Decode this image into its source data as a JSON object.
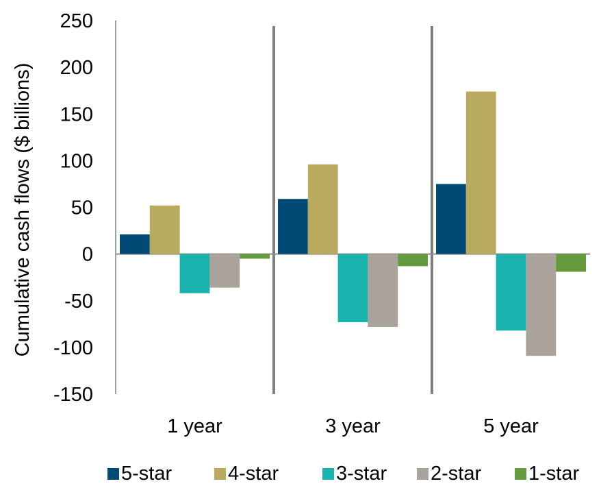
{
  "chart_data": {
    "type": "bar",
    "categories": [
      "1 year",
      "3 year",
      "5 year"
    ],
    "series": [
      {
        "name": "5-star",
        "color": "#004a75",
        "values": [
          21,
          59,
          75
        ]
      },
      {
        "name": "4-star",
        "color": "#b8aa5e",
        "values": [
          52,
          96,
          174
        ]
      },
      {
        "name": "3-star",
        "color": "#1ab2ac",
        "values": [
          -42,
          -73,
          -82
        ]
      },
      {
        "name": "2-star",
        "color": "#a9a39c",
        "values": [
          -36,
          -78,
          -109
        ]
      },
      {
        "name": "1-star",
        "color": "#659a3c",
        "values": [
          -5,
          -13,
          -19
        ]
      }
    ],
    "title": "",
    "xlabel": "",
    "ylabel": "Cumulative cash flows ($ billions)",
    "ylim": [
      -150,
      250
    ],
    "yticks": [
      250,
      200,
      150,
      100,
      50,
      0,
      -50,
      -100,
      -150
    ],
    "ytick_labels": [
      "250",
      "200",
      "150",
      "100",
      "50",
      "0",
      "-50",
      "-100",
      "-150"
    ],
    "grid": false,
    "legend_position": "bottom"
  }
}
